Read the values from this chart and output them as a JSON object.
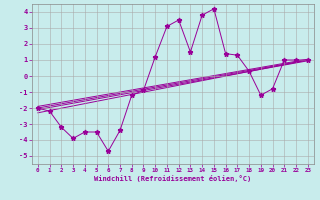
{
  "xlabel": "Windchill (Refroidissement éolien,°C)",
  "bg_color": "#c8ecec",
  "line_color": "#990099",
  "xlim": [
    -0.5,
    23.5
  ],
  "ylim": [
    -5.5,
    4.5
  ],
  "xticks": [
    0,
    1,
    2,
    3,
    4,
    5,
    6,
    7,
    8,
    9,
    10,
    11,
    12,
    13,
    14,
    15,
    16,
    17,
    18,
    19,
    20,
    21,
    22,
    23
  ],
  "yticks": [
    -5,
    -4,
    -3,
    -2,
    -1,
    0,
    1,
    2,
    3,
    4
  ],
  "series1_x": [
    0,
    1,
    2,
    3,
    4,
    5,
    6,
    7,
    8,
    9,
    10,
    11,
    12,
    13,
    14,
    15,
    16,
    17,
    18,
    19,
    20,
    21,
    22,
    23
  ],
  "series1_y": [
    -2.0,
    -2.2,
    -3.2,
    -3.9,
    -3.5,
    -3.5,
    -4.7,
    -3.4,
    -1.2,
    -0.9,
    1.2,
    3.1,
    3.5,
    1.5,
    3.8,
    4.2,
    1.4,
    1.3,
    0.3,
    -1.2,
    -0.8,
    1.0,
    1.0,
    1.0
  ],
  "trend_lines": [
    {
      "x": [
        0,
        23
      ],
      "y": [
        -2.0,
        1.0
      ]
    },
    {
      "x": [
        0,
        23
      ],
      "y": [
        -2.3,
        1.0
      ]
    },
    {
      "x": [
        0,
        23
      ],
      "y": [
        -1.9,
        1.05
      ]
    },
    {
      "x": [
        0,
        23
      ],
      "y": [
        -2.1,
        0.95
      ]
    }
  ]
}
